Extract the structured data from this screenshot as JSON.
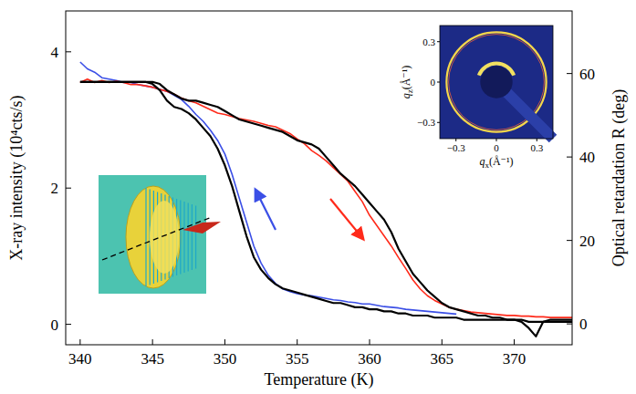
{
  "chart_data": {
    "type": "line",
    "xlabel": "Temperature (K)",
    "ylabel": "X-ray intensity (10⁴cts/s)",
    "y2label": "Optical retardation R (deg)",
    "xlim": [
      339,
      374
    ],
    "xticks": [
      340,
      345,
      350,
      355,
      360,
      365,
      370
    ],
    "ylim": [
      -0.3,
      4.6
    ],
    "yticks": [
      0,
      2,
      4
    ],
    "y2lim": [
      -5,
      75
    ],
    "y2ticks": [
      0,
      20,
      40,
      60
    ],
    "x": [
      340,
      340.5,
      341,
      341.5,
      342,
      342.5,
      343,
      343.5,
      344,
      344.5,
      345,
      345.5,
      346,
      346.5,
      347,
      347.5,
      348,
      348.5,
      349,
      349.5,
      350,
      350.5,
      351,
      351.5,
      352,
      352.5,
      353,
      353.5,
      354,
      354.5,
      355,
      355.5,
      356,
      356.5,
      357,
      357.5,
      358,
      358.5,
      359,
      359.5,
      360,
      360.5,
      361,
      361.5,
      362,
      362.5,
      363,
      363.5,
      364,
      364.5,
      365,
      365.5,
      366,
      366.5,
      367,
      367.5,
      368,
      368.5,
      369,
      369.5,
      370,
      370.5,
      371,
      371.5,
      372,
      372.5,
      373,
      373.5,
      374
    ],
    "series": [
      {
        "color": "#3b4fe6",
        "values": [
          3.85,
          3.75,
          3.7,
          3.62,
          3.6,
          3.58,
          3.55,
          3.55,
          3.52,
          3.5,
          3.48,
          3.45,
          3.42,
          3.36,
          3.3,
          3.2,
          3.08,
          2.98,
          2.85,
          2.7,
          2.5,
          2.2,
          1.85,
          1.5,
          1.15,
          0.9,
          0.72,
          0.6,
          0.52,
          0.48,
          0.45,
          0.43,
          0.42,
          0.4,
          0.38,
          0.36,
          0.35,
          0.33,
          0.32,
          0.3,
          0.3,
          0.28,
          0.26,
          0.25,
          0.24,
          0.22,
          0.21,
          0.2,
          0.19,
          0.18,
          0.17,
          0.16,
          0.15,
          null,
          null,
          null,
          null,
          null,
          null,
          null,
          null,
          null,
          null,
          null,
          null,
          null,
          null,
          null,
          null
        ]
      },
      {
        "color": "#ff2a1a",
        "values": [
          3.55,
          3.6,
          3.55,
          3.58,
          3.55,
          3.57,
          3.55,
          3.52,
          3.52,
          3.5,
          3.48,
          3.45,
          3.42,
          3.38,
          3.32,
          3.28,
          3.25,
          3.2,
          3.15,
          3.1,
          3.08,
          3.05,
          3.02,
          3.0,
          2.98,
          2.95,
          2.92,
          2.9,
          2.85,
          2.8,
          2.72,
          2.65,
          2.55,
          2.48,
          2.4,
          2.3,
          2.2,
          2.1,
          1.95,
          1.8,
          1.6,
          1.45,
          1.3,
          1.15,
          0.98,
          0.82,
          0.65,
          0.52,
          0.42,
          0.35,
          0.3,
          0.25,
          0.22,
          0.2,
          0.18,
          0.17,
          0.16,
          0.15,
          0.14,
          0.13,
          0.13,
          0.12,
          0.12,
          0.11,
          0.11,
          0.1,
          0.1,
          0.1,
          0.1
        ]
      },
      {
        "color": "#000000",
        "axis": "y2",
        "values": [
          58,
          58,
          58,
          58,
          58,
          58,
          58,
          58,
          58,
          58,
          57.5,
          56,
          53.5,
          52,
          51.5,
          50.5,
          49,
          47,
          45,
          42,
          38,
          33,
          27,
          21,
          16,
          13,
          11,
          9.5,
          8.5,
          8,
          7.5,
          7,
          6.5,
          6,
          5.5,
          5,
          5,
          4.5,
          4,
          4,
          3.5,
          3.5,
          3,
          3,
          2.5,
          2.5,
          2,
          2,
          2,
          1.5,
          1.5,
          1.5,
          1.5,
          1,
          1,
          1,
          1,
          1,
          1,
          1,
          1,
          0.5,
          -1,
          -3,
          0.5,
          0.5,
          0.5,
          0.5,
          0.5
        ]
      },
      {
        "color": "#000000",
        "axis": "y2",
        "values": [
          58,
          58,
          58,
          58,
          58,
          58,
          58,
          58,
          58,
          58,
          58,
          57.5,
          56,
          55,
          54,
          53.5,
          53.5,
          53,
          52.5,
          52,
          51,
          50,
          49,
          48.5,
          48,
          47.5,
          47,
          46.5,
          46,
          45,
          44,
          43.5,
          43,
          42,
          40,
          38,
          36,
          34.5,
          33,
          31,
          29,
          27,
          25,
          22,
          18,
          15,
          12,
          10,
          8,
          6.5,
          5,
          4,
          3.5,
          3,
          2.5,
          2,
          2,
          1.5,
          1.5,
          1,
          1,
          1,
          0.5,
          0.5,
          0.5,
          1,
          1,
          1,
          1
        ]
      }
    ],
    "inset": {
      "xlabel": "qx(Å⁻¹)",
      "ylabel": "qz(Å⁻¹)",
      "xlim": [
        -0.42,
        0.42
      ],
      "ylim": [
        -0.42,
        0.42
      ],
      "xticks": [
        {
          "value": -0.3,
          "label": "−0.3"
        },
        0,
        0.3
      ],
      "yticks": [
        {
          "value": -0.3,
          "label": "−0.3"
        },
        0,
        0.3
      ]
    }
  }
}
